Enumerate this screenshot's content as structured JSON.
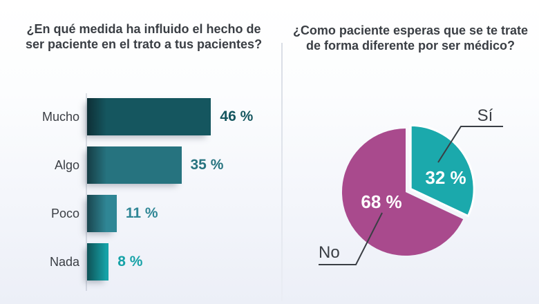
{
  "left_panel": {
    "title_lines": [
      "¿En qué medida ha influido el hecho de",
      "ser paciente en el trato a tus pacientes?"
    ]
  },
  "right_panel": {
    "title_lines": [
      "¿Como paciente esperas que se te trate",
      "de forma diferente por ser médico?"
    ]
  },
  "chart_data": [
    {
      "type": "bar",
      "orientation": "horizontal",
      "title": "¿En qué medida ha influido el hecho de ser paciente en el trato a tus pacientes?",
      "categories": [
        "Mucho",
        "Algo",
        "Poco",
        "Nada"
      ],
      "values": [
        46,
        35,
        11,
        8
      ],
      "value_labels": [
        "46 %",
        "35 %",
        "11 %",
        "8 %"
      ],
      "bar_colors": [
        "#15565f",
        "#26737f",
        "#2f8695",
        "#16a2a7"
      ],
      "unit": "%",
      "xlim": [
        0,
        100
      ],
      "grid": false
    },
    {
      "type": "pie",
      "title": "¿Como paciente esperas que se te trate de forma diferente por ser médico?",
      "start_angle_deg": 0,
      "direction": "clockwise",
      "slices": [
        {
          "label": "Sí",
          "value": 32,
          "display": "32 %",
          "color": "#1ba9ac",
          "exploded": true
        },
        {
          "label": "No",
          "value": 68,
          "display": "68 %",
          "color": "#a94a8d",
          "exploded": false
        }
      ],
      "inside_label_color": "#ffffff"
    }
  ],
  "style_colors": {
    "title_text": "#3a3e44",
    "axis_label_text": "#3a3e44",
    "callout_line": "#3a3e44",
    "divider": "#dfe3ea",
    "background_bottom": "#eceff7"
  }
}
